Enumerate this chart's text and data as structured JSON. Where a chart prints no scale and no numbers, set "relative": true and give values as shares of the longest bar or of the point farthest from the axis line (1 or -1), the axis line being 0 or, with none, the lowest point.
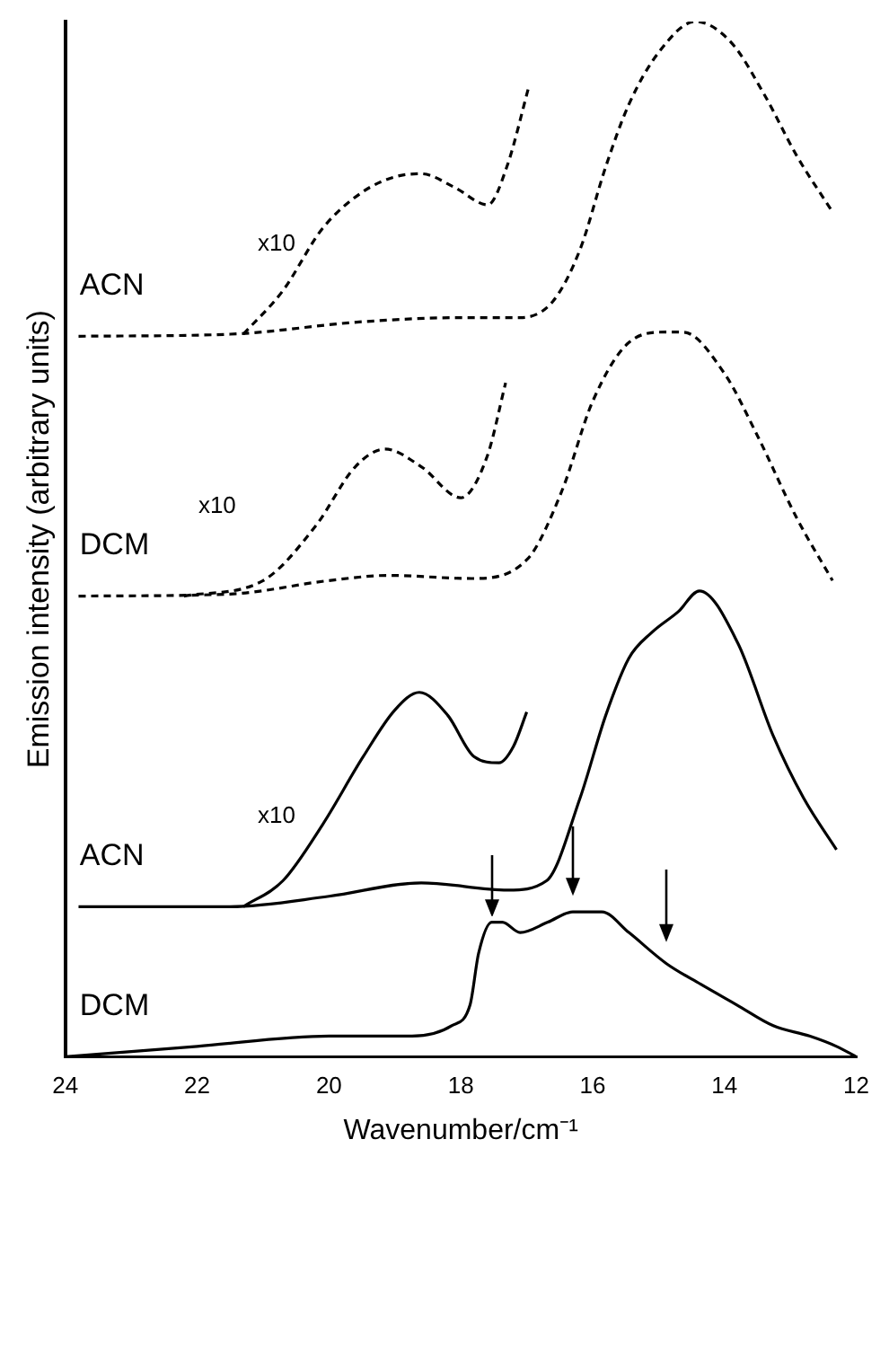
{
  "chart_data": {
    "type": "line",
    "relative": true,
    "xlabel": "Wavenumber/cm⁻¹",
    "ylabel": "Emission intensity (arbitrary units)",
    "xlim": [
      24,
      12
    ],
    "xticks": [
      24,
      22,
      20,
      18,
      16,
      14,
      12
    ],
    "grid": false,
    "legend": false,
    "marker": "none",
    "series": [
      {
        "name": "DCM",
        "color": "#000000",
        "line_style": "solid",
        "x": [
          24,
          22.0,
          20.0,
          18.74,
          18.14,
          17.86,
          17.73,
          17.53,
          17.37,
          17.1,
          16.68,
          16.3,
          15.86,
          15.45,
          14.88,
          14.36,
          13.81,
          13.26,
          12.71,
          12.3,
          12.0
        ],
        "values": [
          0.0,
          0.01,
          0.02,
          0.02,
          0.03,
          0.05,
          0.1,
          0.13,
          0.13,
          0.12,
          0.13,
          0.14,
          0.14,
          0.12,
          0.09,
          0.07,
          0.05,
          0.03,
          0.02,
          0.01,
          0.0
        ]
      },
      {
        "name": "ACN",
        "color": "#000000",
        "line_style": "solid",
        "x": [
          23.8,
          21.5,
          20.0,
          18.6,
          17.29,
          16.7,
          16.19,
          15.8,
          15.45,
          15.1,
          14.7,
          14.38,
          13.8,
          13.26,
          12.8,
          12.3
        ],
        "values": [
          0.145,
          0.145,
          0.155,
          0.168,
          0.161,
          0.17,
          0.25,
          0.33,
          0.385,
          0.41,
          0.43,
          0.45,
          0.4,
          0.31,
          0.25,
          0.2
        ]
      },
      {
        "name": "x10",
        "color": "#000000",
        "line_style": "solid",
        "x": [
          21.3,
          20.7,
          20.1,
          19.48,
          19.0,
          18.63,
          18.2,
          17.8,
          17.42,
          17.2,
          17.0
        ],
        "values": [
          0.145,
          0.17,
          0.224,
          0.29,
          0.335,
          0.352,
          0.33,
          0.29,
          0.284,
          0.3,
          0.333
        ]
      },
      {
        "name": "DCM",
        "color": "#000000",
        "line_style": "dashed",
        "x": [
          23.8,
          21.5,
          20.0,
          19.1,
          17.84,
          17.0,
          16.47,
          16.0,
          15.45,
          14.9,
          14.63,
          14.0,
          13.5,
          12.9,
          12.36
        ],
        "values": [
          0.445,
          0.447,
          0.46,
          0.465,
          0.462,
          0.48,
          0.546,
          0.633,
          0.69,
          0.7,
          0.7,
          0.66,
          0.6,
          0.52,
          0.46
        ]
      },
      {
        "name": "x10",
        "color": "#000000",
        "line_style": "dashed",
        "x": [
          22.2,
          21.0,
          20.2,
          19.6,
          19.15,
          18.6,
          18.0,
          17.6,
          17.32
        ],
        "values": [
          0.445,
          0.46,
          0.513,
          0.57,
          0.587,
          0.57,
          0.54,
          0.58,
          0.651
        ]
      },
      {
        "name": "ACN",
        "color": "#000000",
        "line_style": "dashed",
        "x": [
          23.8,
          21.5,
          19.5,
          18.0,
          17.1,
          16.6,
          16.19,
          15.8,
          15.45,
          15.0,
          14.44,
          13.9,
          13.4,
          12.9,
          12.38
        ],
        "values": [
          0.696,
          0.698,
          0.71,
          0.714,
          0.714,
          0.73,
          0.78,
          0.86,
          0.92,
          0.97,
          1.0,
          0.98,
          0.93,
          0.87,
          0.818
        ]
      },
      {
        "name": "x10",
        "color": "#000000",
        "line_style": "dashed",
        "x": [
          21.3,
          20.7,
          20.1,
          19.5,
          19.0,
          18.6,
          18.1,
          17.59,
          17.3,
          16.96
        ],
        "values": [
          0.698,
          0.74,
          0.8,
          0.835,
          0.85,
          0.853,
          0.84,
          0.823,
          0.86,
          0.939
        ]
      }
    ]
  }
}
